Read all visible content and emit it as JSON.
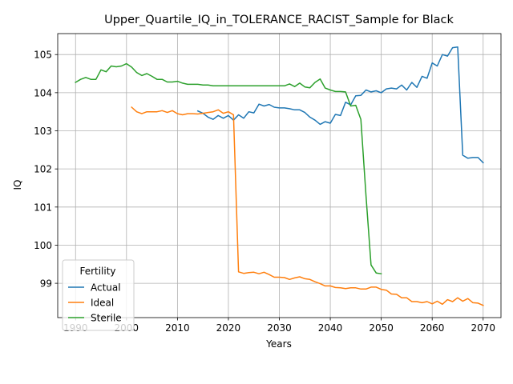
{
  "chart_data": {
    "type": "line",
    "title": "Upper_Quartile_IQ_in_TOLERANCE_RACIST_Sample for Black",
    "xlabel": "Years",
    "ylabel": "IQ",
    "xlim": [
      1986.5,
      2073.5
    ],
    "ylim": [
      98.1,
      105.55
    ],
    "xticks": [
      1990,
      2000,
      2010,
      2020,
      2030,
      2040,
      2050,
      2060,
      2070
    ],
    "yticks": [
      99,
      100,
      101,
      102,
      103,
      104,
      105
    ],
    "grid": true,
    "legend": {
      "title": "Fertility",
      "placement": "lower-left"
    },
    "series": [
      {
        "name": "Actual",
        "color": "#1f77b4",
        "x": [
          2014,
          2015,
          2016,
          2017,
          2018,
          2019,
          2020,
          2021,
          2022,
          2023,
          2024,
          2025,
          2026,
          2027,
          2028,
          2029,
          2030,
          2031,
          2032,
          2033,
          2034,
          2035,
          2036,
          2037,
          2038,
          2039,
          2040,
          2041,
          2042,
          2043,
          2044,
          2045,
          2046,
          2047,
          2048,
          2049,
          2050,
          2051,
          2052,
          2053,
          2054,
          2055,
          2056,
          2057,
          2058,
          2059,
          2060,
          2061,
          2062,
          2063,
          2064,
          2065,
          2066,
          2067,
          2068,
          2069,
          2070
        ],
        "values": [
          103.52,
          103.46,
          103.36,
          103.3,
          103.4,
          103.33,
          103.4,
          103.28,
          103.42,
          103.33,
          103.5,
          103.47,
          103.7,
          103.65,
          103.69,
          103.62,
          103.6,
          103.6,
          103.58,
          103.55,
          103.55,
          103.48,
          103.36,
          103.28,
          103.17,
          103.24,
          103.2,
          103.43,
          103.4,
          103.75,
          103.68,
          103.92,
          103.93,
          104.07,
          104.02,
          104.05,
          104.0,
          104.1,
          104.12,
          104.1,
          104.2,
          104.07,
          104.27,
          104.14,
          104.43,
          104.38,
          104.78,
          104.7,
          105.0,
          104.96,
          105.18,
          105.2,
          102.36,
          102.28,
          102.3,
          102.3,
          102.16
        ]
      },
      {
        "name": "Ideal",
        "color": "#ff7f0e",
        "x": [
          2001,
          2002,
          2003,
          2004,
          2005,
          2006,
          2007,
          2008,
          2009,
          2010,
          2011,
          2012,
          2013,
          2014,
          2015,
          2016,
          2017,
          2018,
          2019,
          2020,
          2021,
          2022,
          2023,
          2024,
          2025,
          2026,
          2027,
          2028,
          2029,
          2030,
          2031,
          2032,
          2033,
          2034,
          2035,
          2036,
          2037,
          2038,
          2039,
          2040,
          2041,
          2042,
          2043,
          2044,
          2045,
          2046,
          2047,
          2048,
          2049,
          2050,
          2051,
          2052,
          2053,
          2054,
          2055,
          2056,
          2057,
          2058,
          2059,
          2060,
          2061,
          2062,
          2063,
          2064,
          2065,
          2066,
          2067,
          2068,
          2069,
          2070
        ],
        "values": [
          103.62,
          103.5,
          103.45,
          103.5,
          103.5,
          103.5,
          103.53,
          103.48,
          103.53,
          103.45,
          103.42,
          103.45,
          103.45,
          103.44,
          103.46,
          103.48,
          103.5,
          103.55,
          103.46,
          103.5,
          103.42,
          99.3,
          99.26,
          99.28,
          99.29,
          99.25,
          99.29,
          99.23,
          99.16,
          99.16,
          99.15,
          99.1,
          99.14,
          99.17,
          99.12,
          99.1,
          99.04,
          98.99,
          98.93,
          98.93,
          98.89,
          98.88,
          98.86,
          98.88,
          98.88,
          98.85,
          98.85,
          98.9,
          98.9,
          98.84,
          98.82,
          98.72,
          98.71,
          98.62,
          98.62,
          98.52,
          98.52,
          98.49,
          98.52,
          98.46,
          98.53,
          98.45,
          98.57,
          98.52,
          98.62,
          98.53,
          98.6,
          98.49,
          98.48,
          98.42
        ]
      },
      {
        "name": "Sterile",
        "color": "#2ca02c",
        "x": [
          1990,
          1991,
          1992,
          1993,
          1994,
          1995,
          1996,
          1997,
          1998,
          1999,
          2000,
          2001,
          2002,
          2003,
          2004,
          2005,
          2006,
          2007,
          2008,
          2009,
          2010,
          2011,
          2012,
          2013,
          2014,
          2015,
          2016,
          2017,
          2018,
          2019,
          2020,
          2021,
          2022,
          2023,
          2024,
          2025,
          2026,
          2027,
          2028,
          2029,
          2030,
          2031,
          2032,
          2033,
          2034,
          2035,
          2036,
          2037,
          2038,
          2039,
          2040,
          2041,
          2042,
          2043,
          2044,
          2045,
          2046,
          2047,
          2048,
          2049,
          2050
        ],
        "values": [
          104.27,
          104.35,
          104.4,
          104.35,
          104.35,
          104.6,
          104.55,
          104.7,
          104.68,
          104.7,
          104.76,
          104.67,
          104.53,
          104.45,
          104.5,
          104.43,
          104.35,
          104.35,
          104.28,
          104.28,
          104.3,
          104.25,
          104.22,
          104.22,
          104.22,
          104.2,
          104.2,
          104.18,
          104.18,
          104.18,
          104.18,
          104.18,
          104.18,
          104.18,
          104.18,
          104.18,
          104.18,
          104.18,
          104.18,
          104.18,
          104.18,
          104.18,
          104.23,
          104.16,
          104.25,
          104.15,
          104.13,
          104.27,
          104.36,
          104.12,
          104.07,
          104.03,
          104.03,
          104.02,
          103.65,
          103.67,
          103.3,
          101.3,
          99.48,
          99.27,
          99.25
        ]
      }
    ]
  }
}
